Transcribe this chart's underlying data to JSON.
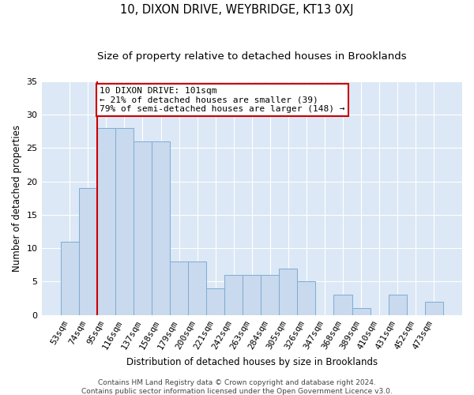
{
  "title_line1": "10, DIXON DRIVE, WEYBRIDGE, KT13 0XJ",
  "title_line2": "Size of property relative to detached houses in Brooklands",
  "xlabel": "Distribution of detached houses by size in Brooklands",
  "ylabel": "Number of detached properties",
  "categories": [
    "53sqm",
    "74sqm",
    "95sqm",
    "116sqm",
    "137sqm",
    "158sqm",
    "179sqm",
    "200sqm",
    "221sqm",
    "242sqm",
    "263sqm",
    "284sqm",
    "305sqm",
    "326sqm",
    "347sqm",
    "368sqm",
    "389sqm",
    "410sqm",
    "431sqm",
    "452sqm",
    "473sqm"
  ],
  "values": [
    11,
    19,
    28,
    28,
    26,
    26,
    8,
    8,
    4,
    6,
    6,
    6,
    7,
    5,
    0,
    3,
    1,
    0,
    3,
    0,
    2
  ],
  "bar_color": "#c9d9ee",
  "bar_edge_color": "#7cadd4",
  "highlight_color": "#cc0000",
  "annotation_text": "10 DIXON DRIVE: 101sqm\n← 21% of detached houses are smaller (39)\n79% of semi-detached houses are larger (148) →",
  "annotation_box_color": "#ffffff",
  "annotation_box_edge": "#cc0000",
  "ylim": [
    0,
    35
  ],
  "yticks": [
    0,
    5,
    10,
    15,
    20,
    25,
    30,
    35
  ],
  "plot_bg": "#dce8f5",
  "fig_bg": "#ffffff",
  "footer": "Contains HM Land Registry data © Crown copyright and database right 2024.\nContains public sector information licensed under the Open Government Licence v3.0.",
  "title_fontsize": 10.5,
  "subtitle_fontsize": 9.5,
  "tick_fontsize": 8,
  "xlabel_fontsize": 8.5,
  "ylabel_fontsize": 8.5,
  "footer_fontsize": 6.5,
  "annotation_fontsize": 8
}
